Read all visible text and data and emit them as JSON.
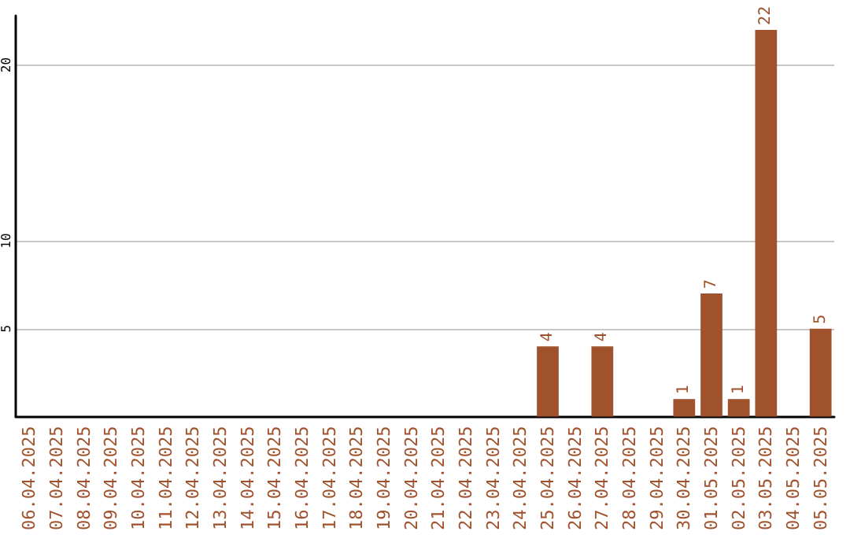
{
  "chart_data": {
    "type": "bar",
    "categories": [
      "06.04.2025",
      "07.04.2025",
      "08.04.2025",
      "09.04.2025",
      "10.04.2025",
      "11.04.2025",
      "12.04.2025",
      "13.04.2025",
      "14.04.2025",
      "15.04.2025",
      "16.04.2025",
      "17.04.2025",
      "18.04.2025",
      "19.04.2025",
      "20.04.2025",
      "21.04.2025",
      "22.04.2025",
      "23.04.2025",
      "24.04.2025",
      "25.04.2025",
      "26.04.2025",
      "27.04.2025",
      "28.04.2025",
      "29.04.2025",
      "30.04.2025",
      "01.05.2025",
      "02.05.2025",
      "03.05.2025",
      "04.05.2025",
      "05.05.2025"
    ],
    "values": [
      0,
      0,
      0,
      0,
      0,
      0,
      0,
      0,
      0,
      0,
      0,
      0,
      0,
      0,
      0,
      0,
      0,
      0,
      0,
      4,
      0,
      4,
      0,
      0,
      1,
      7,
      1,
      22,
      0,
      5
    ],
    "value_labels": [
      null,
      null,
      null,
      null,
      null,
      null,
      null,
      null,
      null,
      null,
      null,
      null,
      null,
      null,
      null,
      null,
      null,
      null,
      null,
      "4",
      null,
      "4",
      null,
      null,
      "1",
      "7",
      "1",
      "22",
      null,
      "5"
    ],
    "color": "#a0522d",
    "ylim": [
      0,
      22.8
    ],
    "yticks": [
      5,
      10,
      20
    ],
    "grid": "y"
  }
}
